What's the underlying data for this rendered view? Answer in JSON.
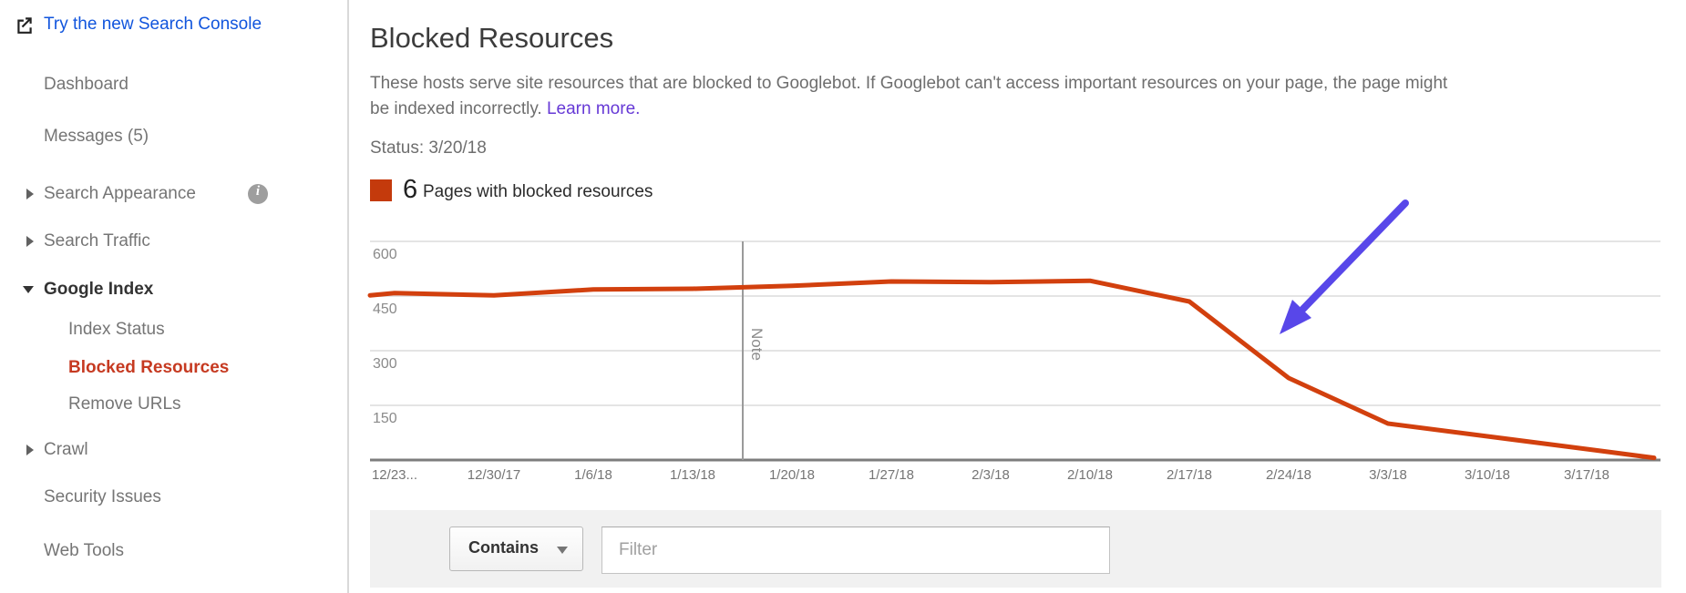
{
  "colors": {
    "link_blue": "#1155dd",
    "visited_purple": "#6639d6",
    "active_nav_red": "#c63a21",
    "line_red": "#d2400e",
    "legend_swatch_red": "#c43a0c",
    "arrow_violet": "#5847e9",
    "gridline": "#e4e4e4",
    "axis_gray": "#7d7d7d"
  },
  "sidebar": {
    "items": [
      {
        "id": "try-new-search-console",
        "label": "Try the new Search Console",
        "type": "link",
        "icon": "external-link"
      },
      {
        "id": "dashboard",
        "label": "Dashboard"
      },
      {
        "id": "messages",
        "label": "Messages (5)"
      },
      {
        "id": "search-appearance",
        "label": "Search Appearance",
        "arrow": "right",
        "info": true
      },
      {
        "id": "search-traffic",
        "label": "Search Traffic",
        "arrow": "right"
      },
      {
        "id": "google-index",
        "label": "Google Index",
        "arrow": "down",
        "bold": true
      },
      {
        "id": "index-status",
        "label": "Index Status",
        "sub": true
      },
      {
        "id": "blocked-resources",
        "label": "Blocked Resources",
        "sub": true,
        "active": true
      },
      {
        "id": "remove-urls",
        "label": "Remove URLs",
        "sub": true
      },
      {
        "id": "crawl",
        "label": "Crawl",
        "arrow": "right"
      },
      {
        "id": "security-issues",
        "label": "Security Issues"
      },
      {
        "id": "web-tools",
        "label": "Web Tools"
      }
    ]
  },
  "header": {
    "title": "Blocked Resources",
    "description_line1": "These hosts serve site resources that are blocked to Googlebot. If Googlebot can't access important resources on your page, the page might",
    "description_line2": "be indexed incorrectly.",
    "learn_more": "Learn more.",
    "status": "Status: 3/20/18"
  },
  "legend": {
    "count": "6",
    "label": "Pages with blocked resources"
  },
  "chart_data": {
    "type": "line",
    "title": "Pages with blocked resources over time",
    "xlabel": "",
    "ylabel": "",
    "grid": true,
    "legend_position": "top-left",
    "series_name": "Pages with blocked resources",
    "series_color": "#d2400e",
    "ylim": [
      0,
      600
    ],
    "yticks": [
      600,
      450,
      300,
      150
    ],
    "categories": [
      "12/23...",
      "12/30/17",
      "1/6/18",
      "1/13/18",
      "1/20/18",
      "1/27/18",
      "2/3/18",
      "2/10/18",
      "2/17/18",
      "2/24/18",
      "3/3/18",
      "3/10/18",
      "3/17/18"
    ],
    "values": [
      458,
      452,
      468,
      470,
      478,
      490,
      488,
      492,
      435,
      225,
      100,
      65,
      30
    ],
    "edge_values": {
      "left": 452,
      "right": 6
    },
    "annotation": {
      "label": "Note",
      "position": "between 1/13/18 and 1/20/18"
    }
  },
  "filter": {
    "contains_label": "Contains",
    "placeholder": "Filter"
  }
}
